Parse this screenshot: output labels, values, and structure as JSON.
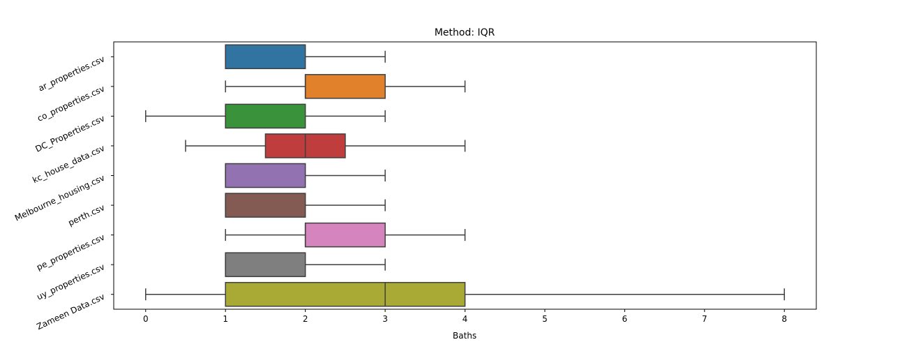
{
  "chart_data": {
    "type": "boxplot",
    "orientation": "horizontal",
    "title": "Method: IQR",
    "xlabel": "Baths",
    "ylabel": "",
    "xlim": [
      -0.4,
      8.4
    ],
    "xticks": [
      0,
      1,
      2,
      3,
      4,
      5,
      6,
      7,
      8
    ],
    "grid": false,
    "categories": [
      "ar_properties.csv",
      "co_properties.csv",
      "DC_Properties.csv",
      "kc_house_data.csv",
      "Melbourne_housing.csv",
      "perth.csv",
      "pe_properties.csv",
      "uy_properties.csv",
      "Zameen Data.csv"
    ],
    "boxes": [
      {
        "whislo": 1,
        "q1": 1,
        "med": 1,
        "q3": 2,
        "whishi": 3,
        "color": "#3274a1"
      },
      {
        "whislo": 1,
        "q1": 2,
        "med": 2,
        "q3": 3,
        "whishi": 4,
        "color": "#e1812c"
      },
      {
        "whislo": 0,
        "q1": 1,
        "med": 1,
        "q3": 2,
        "whishi": 3,
        "color": "#3a923a"
      },
      {
        "whislo": 0.5,
        "q1": 1.5,
        "med": 2,
        "q3": 2.5,
        "whishi": 4,
        "color": "#c03d3e"
      },
      {
        "whislo": 1,
        "q1": 1,
        "med": 1,
        "q3": 2,
        "whishi": 3,
        "color": "#9372b2"
      },
      {
        "whislo": 1,
        "q1": 1,
        "med": 1,
        "q3": 2,
        "whishi": 3,
        "color": "#845b53"
      },
      {
        "whislo": 1,
        "q1": 2,
        "med": 2,
        "q3": 3,
        "whishi": 4,
        "color": "#d684bd"
      },
      {
        "whislo": 1,
        "q1": 1,
        "med": 1,
        "q3": 2,
        "whishi": 3,
        "color": "#7f7f7f"
      },
      {
        "whislo": 0,
        "q1": 1,
        "med": 3,
        "q3": 4,
        "whishi": 8,
        "color": "#a9aa35"
      }
    ]
  }
}
